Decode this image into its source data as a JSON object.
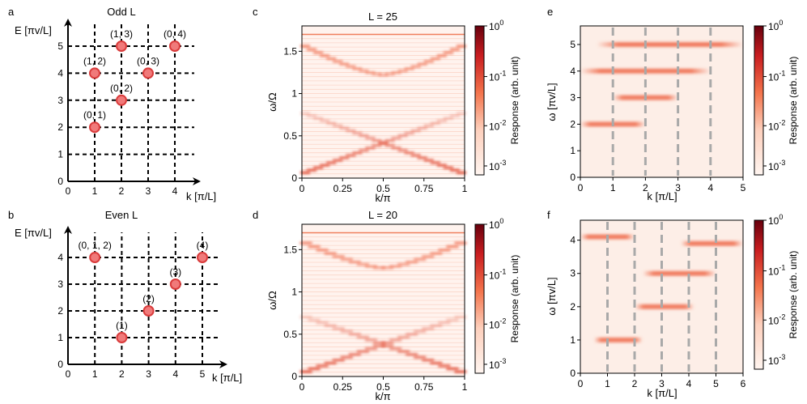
{
  "panels": {
    "a": {
      "letter": "a",
      "title": "Odd L",
      "ylabel": "E [πv/L]",
      "xlabel": "k [π/L]",
      "xticks": [
        "0",
        "1",
        "2",
        "3",
        "4"
      ],
      "yticks": [
        "0",
        "1",
        "2",
        "3",
        "4",
        "5"
      ]
    },
    "b": {
      "letter": "b",
      "title": "Even L",
      "ylabel": "E [πv/L]",
      "xlabel": "k [π/L]",
      "xticks": [
        "0",
        "1",
        "2",
        "3",
        "4",
        "5"
      ],
      "yticks": [
        "0",
        "1",
        "2",
        "3",
        "4"
      ]
    },
    "c": {
      "letter": "c",
      "title": "L = 25",
      "xlabel": "k/π",
      "ylabel": "ω/Ω",
      "xticks": [
        "0",
        "0.25",
        "0.5",
        "0.75",
        "1"
      ],
      "yticks": [
        "0",
        "0.5",
        "1",
        "1.5"
      ]
    },
    "d": {
      "letter": "d",
      "title": "L = 20",
      "xlabel": "k/π",
      "ylabel": "ω/Ω",
      "xticks": [
        "0",
        "0.25",
        "0.5",
        "0.75",
        "1"
      ],
      "yticks": [
        "0",
        "0.5",
        "1",
        "1.5"
      ]
    },
    "e": {
      "letter": "e",
      "xlabel": "k [π/L]",
      "ylabel": "ω [πv/L]",
      "xticks": [
        "0",
        "1",
        "2",
        "3",
        "4",
        "5"
      ],
      "yticks": [
        "0",
        "1",
        "2",
        "3",
        "4",
        "5"
      ]
    },
    "f": {
      "letter": "f",
      "xlabel": "k [π/L]",
      "ylabel": "ω [πv/L]",
      "xticks": [
        "0",
        "1",
        "2",
        "3",
        "4",
        "5",
        "6"
      ],
      "yticks": [
        "0",
        "1",
        "2",
        "3",
        "4"
      ]
    }
  },
  "colorbar": {
    "label": "Response (arb. unit)",
    "tick_base": "10",
    "tick_exponents": [
      "0",
      "-1",
      "-2",
      "-3"
    ]
  },
  "colors": {
    "node_fill": "#f07a7a",
    "node_stroke": "#d93b3b",
    "cmap_low": "#fff3ee",
    "cmap_mid": "#f4744c",
    "cmap_high": "#67000d",
    "guide_line": "#a9a9a9"
  },
  "chart_data": [
    {
      "panel": "a",
      "type": "scatter",
      "title": "Odd L",
      "xlabel": "k [π/L]",
      "ylabel": "E [πv/L]",
      "xlim": [
        0,
        4
      ],
      "ylim": [
        0,
        5
      ],
      "grid": true,
      "points": [
        {
          "label": "(0, 1)",
          "x": 1,
          "y": 2
        },
        {
          "label": "(0, 2)",
          "x": 2,
          "y": 3
        },
        {
          "label": "(1, 2)",
          "x": 1,
          "y": 4
        },
        {
          "label": "(0, 3)",
          "x": 3,
          "y": 4
        },
        {
          "label": "(1, 3)",
          "x": 2,
          "y": 5
        },
        {
          "label": "(0, 4)",
          "x": 4,
          "y": 5
        }
      ]
    },
    {
      "panel": "b",
      "type": "scatter",
      "title": "Even L",
      "xlabel": "k [π/L]",
      "ylabel": "E [πv/L]",
      "xlim": [
        0,
        5
      ],
      "ylim": [
        0,
        4
      ],
      "grid": true,
      "points": [
        {
          "label": "(1)",
          "x": 2,
          "y": 1
        },
        {
          "label": "(2)",
          "x": 3,
          "y": 2
        },
        {
          "label": "(3)",
          "x": 4,
          "y": 3
        },
        {
          "label": "(0, 1, 2)",
          "x": 1,
          "y": 4
        },
        {
          "label": "(4)",
          "x": 5,
          "y": 4
        }
      ]
    },
    {
      "panel": "c",
      "type": "heatmap",
      "title": "L = 25",
      "xlabel": "k/π",
      "ylabel": "ω/Ω",
      "xlim": [
        0,
        1
      ],
      "ylim": [
        0,
        1.8
      ],
      "colorbar": {
        "label": "Response (arb. unit)",
        "scale": "log",
        "range": [
          0.001,
          1
        ]
      },
      "bands": [
        {
          "name": "upper",
          "min_omega": 1.22,
          "max_omega": 1.58,
          "center_k": 0.5
        },
        {
          "name": "lower",
          "min_omega": 0.05,
          "max_omega": 0.78,
          "center_k": 0.5
        },
        {
          "name": "flat",
          "omega": 1.7
        }
      ]
    },
    {
      "panel": "d",
      "type": "heatmap",
      "title": "L = 20",
      "xlabel": "k/π",
      "ylabel": "ω/Ω",
      "xlim": [
        0,
        1
      ],
      "ylim": [
        0,
        1.8
      ],
      "colorbar": {
        "label": "Response (arb. unit)",
        "scale": "log",
        "range": [
          0.001,
          1
        ]
      },
      "bands": [
        {
          "name": "upper",
          "min_omega": 1.28,
          "max_omega": 1.6,
          "center_k": 0.5
        },
        {
          "name": "lower",
          "min_omega": 0.04,
          "max_omega": 0.72,
          "center_k": 0.5
        },
        {
          "name": "flat",
          "omega": 1.7
        }
      ]
    },
    {
      "panel": "e",
      "type": "heatmap",
      "xlabel": "k [π/L]",
      "ylabel": "ω [πv/L]",
      "xlim": [
        0,
        5
      ],
      "ylim": [
        0,
        5.7
      ],
      "colorbar": {
        "label": "Response (arb. unit)",
        "scale": "log",
        "range": [
          0.001,
          1
        ]
      },
      "guide_k": [
        1,
        2,
        3,
        4
      ],
      "streaks": [
        {
          "omega": 2,
          "k_from": 0,
          "k_to": 2
        },
        {
          "omega": 3,
          "k_from": 1,
          "k_to": 3
        },
        {
          "omega": 4,
          "k_from": 0,
          "k_to": 4
        },
        {
          "omega": 5,
          "k_from": 0.5,
          "k_to": 5
        }
      ]
    },
    {
      "panel": "f",
      "type": "heatmap",
      "xlabel": "k [π/L]",
      "ylabel": "ω [πv/L]",
      "xlim": [
        0,
        6
      ],
      "ylim": [
        0,
        4.6
      ],
      "colorbar": {
        "label": "Response (arb. unit)",
        "scale": "log",
        "range": [
          0.001,
          1
        ]
      },
      "guide_k": [
        1,
        2,
        3,
        4,
        5
      ],
      "streaks": [
        {
          "omega": 1,
          "k_from": 0.5,
          "k_to": 2.3
        },
        {
          "omega": 2,
          "k_from": 2,
          "k_to": 4.2
        },
        {
          "omega": 3,
          "k_from": 2.3,
          "k_to": 5
        },
        {
          "omega": 4.1,
          "k_from": 0,
          "k_to": 2
        },
        {
          "omega": 3.9,
          "k_from": 3.7,
          "k_to": 6
        }
      ]
    }
  ]
}
